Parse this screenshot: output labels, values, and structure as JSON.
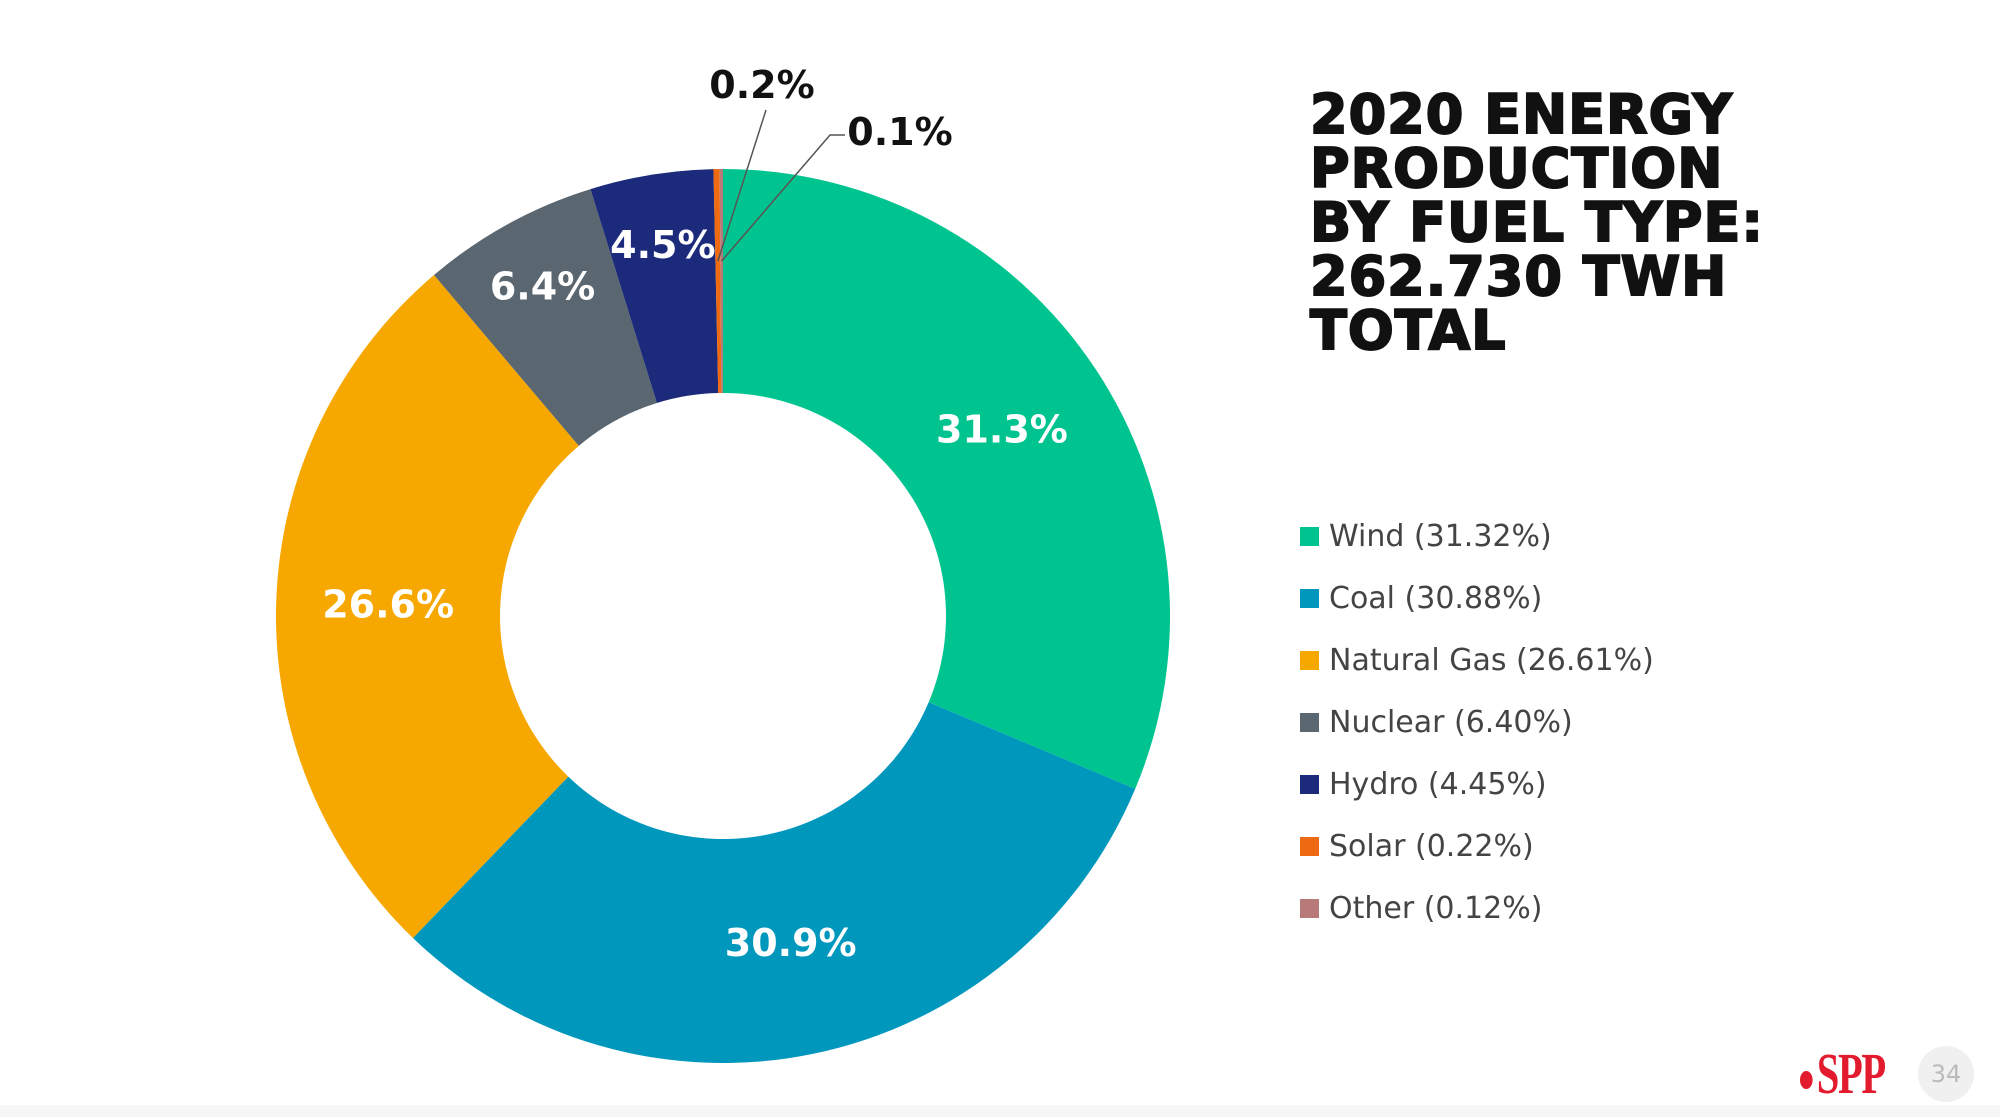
{
  "chart_data": {
    "type": "pie",
    "subtype": "donut",
    "title": "2020 ENERGY PRODUCTION BY FUEL TYPE: 262.730 TWH TOTAL",
    "title_lines": [
      "2020 ENERGY",
      "PRODUCTION",
      "BY FUEL TYPE:",
      "262.730 TWH",
      "TOTAL"
    ],
    "categories": [
      "Wind",
      "Coal",
      "Natural Gas",
      "Nuclear",
      "Hydro",
      "Solar",
      "Other"
    ],
    "values": [
      31.32,
      30.88,
      26.61,
      6.4,
      4.45,
      0.22,
      0.12
    ],
    "data_labels": [
      "31.3%",
      "30.9%",
      "26.6%",
      "6.4%",
      "4.5%",
      "0.2%",
      "0.1%"
    ],
    "legend_labels": [
      "Wind (31.32%)",
      "Coal (30.88%)",
      "Natural Gas (26.61%)",
      "Nuclear (6.40%)",
      "Hydro (4.45%)",
      "Solar (0.22%)",
      "Other (0.12%)"
    ],
    "colors": [
      "#00c48f",
      "#0097bd",
      "#f7a800",
      "#5a6670",
      "#1b2a7a",
      "#ee6a12",
      "#b87a78"
    ],
    "legend_position": "right",
    "units": "percent"
  },
  "footer": {
    "logo_text": "SPP",
    "page_number": "34"
  }
}
